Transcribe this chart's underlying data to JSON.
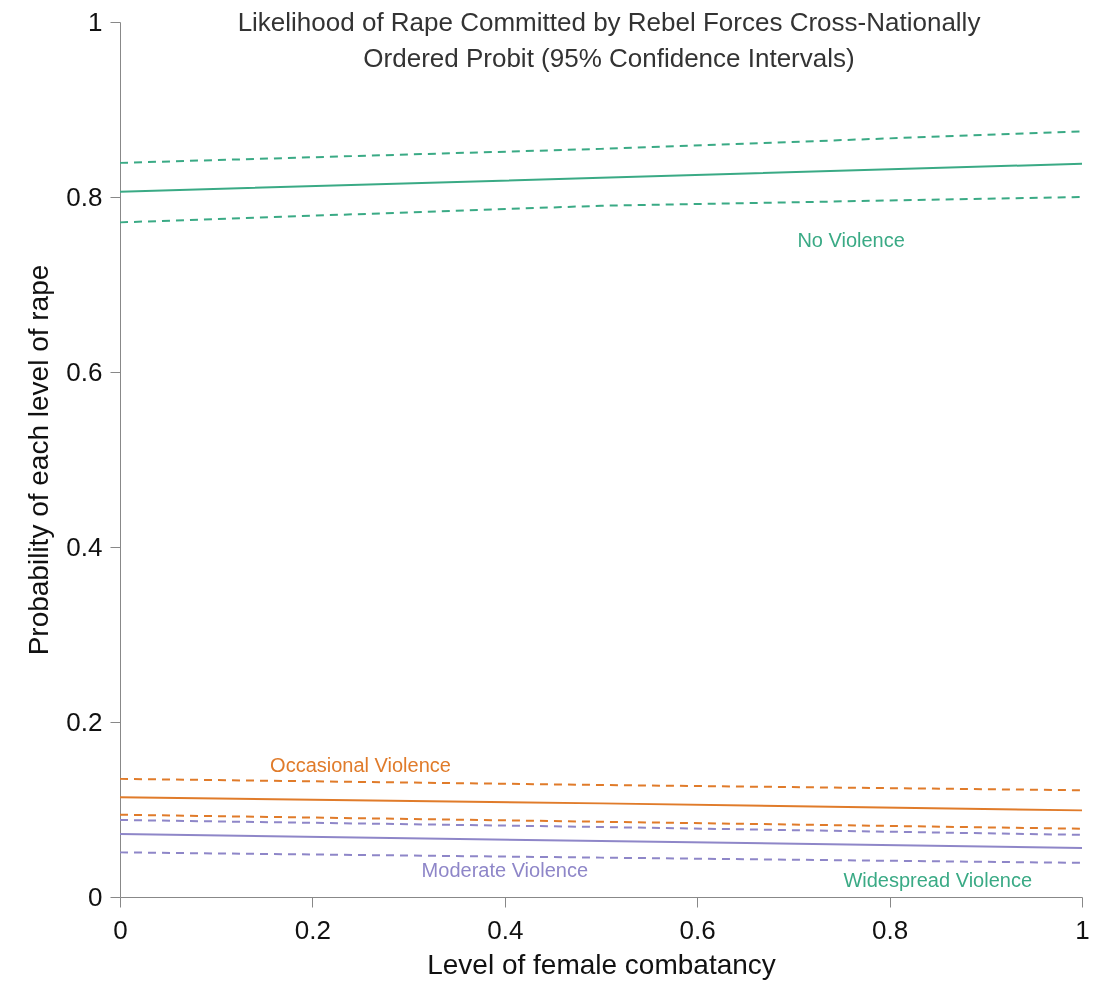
{
  "chart_data": {
    "type": "line",
    "title": "Likelihood of Rape Committed by Rebel Forces Cross-Nationally\nOrdered Probit (95% Confidence Intervals)",
    "xlabel": "Level of female combatancy",
    "ylabel": "Probability of each level of rape",
    "x": [
      0,
      0.5,
      1
    ],
    "series": [
      {
        "color": "#3aaa85",
        "line_style": "solid",
        "values": [
          0.806,
          0.822,
          0.838
        ]
      },
      {
        "color": "#3aaa85",
        "line_style": "dashed",
        "values": [
          0.839,
          0.855,
          0.875
        ]
      },
      {
        "color": "#3aaa85",
        "line_style": "dashed",
        "values": [
          0.771,
          0.79,
          0.8
        ]
      },
      {
        "color": "#e07b2a",
        "line_style": "solid",
        "values": [
          0.114,
          0.107,
          0.099
        ]
      },
      {
        "color": "#e07b2a",
        "line_style": "dashed",
        "values": [
          0.135,
          0.128,
          0.122
        ]
      },
      {
        "color": "#e07b2a",
        "line_style": "dashed",
        "values": [
          0.094,
          0.086,
          0.078
        ]
      },
      {
        "color": "#8e86c8",
        "line_style": "solid",
        "values": [
          0.072,
          0.064,
          0.056
        ]
      },
      {
        "color": "#8e86c8",
        "line_style": "dashed",
        "values": [
          0.088,
          0.08,
          0.071
        ]
      },
      {
        "color": "#8e86c8",
        "line_style": "dashed",
        "values": [
          0.051,
          0.045,
          0.039
        ]
      }
    ],
    "annotations": [
      "No Violence",
      "Occasional Violence",
      "Moderate Violence",
      "Widespread Violence"
    ],
    "xlim": [
      0,
      1
    ],
    "ylim": [
      0,
      1
    ],
    "xticks": [
      0,
      0.2,
      0.4,
      0.6,
      0.8,
      1
    ],
    "yticks": [
      0,
      0.2,
      0.4,
      0.6,
      0.8,
      1
    ]
  }
}
